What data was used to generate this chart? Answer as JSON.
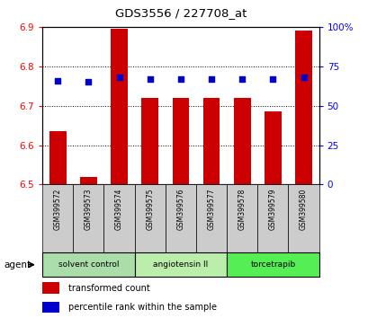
{
  "title": "GDS3556 / 227708_at",
  "samples": [
    "GSM399572",
    "GSM399573",
    "GSM399574",
    "GSM399575",
    "GSM399576",
    "GSM399577",
    "GSM399578",
    "GSM399579",
    "GSM399580"
  ],
  "bar_values": [
    6.635,
    6.52,
    6.895,
    6.72,
    6.72,
    6.72,
    6.72,
    6.685,
    6.89
  ],
  "dot_values": [
    66,
    65,
    68,
    67,
    67,
    67,
    67,
    67,
    68
  ],
  "ylim_left": [
    6.5,
    6.9
  ],
  "ylim_right": [
    0,
    100
  ],
  "yticks_left": [
    6.5,
    6.6,
    6.7,
    6.8,
    6.9
  ],
  "yticks_right": [
    0,
    25,
    50,
    75,
    100
  ],
  "bar_color": "#cc0000",
  "dot_color": "#0000cc",
  "bar_bottom": 6.5,
  "groups": [
    {
      "label": "solvent control",
      "start": 0,
      "end": 3,
      "color": "#aaddaa"
    },
    {
      "label": "angiotensin II",
      "start": 3,
      "end": 6,
      "color": "#bbeeaa"
    },
    {
      "label": "torcetrapib",
      "start": 6,
      "end": 9,
      "color": "#55ee55"
    }
  ],
  "agent_label": "agent",
  "legend_items": [
    {
      "label": "transformed count",
      "color": "#cc0000"
    },
    {
      "label": "percentile rank within the sample",
      "color": "#0000cc"
    }
  ],
  "background_color": "#ffffff"
}
